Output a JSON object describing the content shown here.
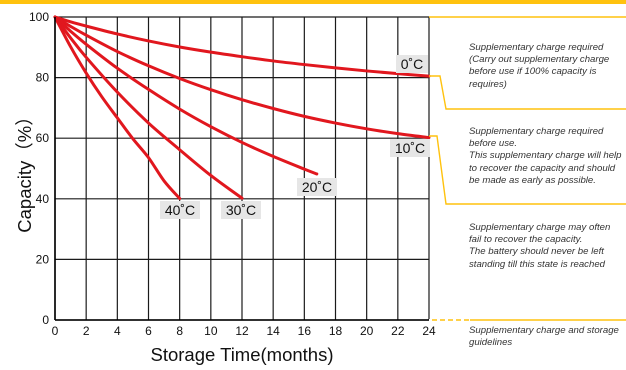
{
  "colors": {
    "accent": "#FFC20E",
    "curve": "#E1171E",
    "grid": "#1a1a1a",
    "label_bg": "#E6E6E6"
  },
  "chart_data": {
    "type": "line",
    "xlabel": "Storage Time(months)",
    "ylabel": "Capacity（%）",
    "xlim": [
      0,
      24
    ],
    "ylim": [
      0,
      100
    ],
    "x_ticks": [
      "0",
      "2",
      "4",
      "6",
      "8",
      "10",
      "12",
      "14",
      "16",
      "18",
      "20",
      "22",
      "24"
    ],
    "y_ticks": [
      "0",
      "20",
      "40",
      "60",
      "80",
      "100"
    ],
    "grid": true,
    "series": [
      {
        "name": "0˚C",
        "x": [
          0,
          1,
          2,
          4,
          6,
          8,
          10,
          12,
          14,
          16,
          18,
          20,
          22,
          24
        ],
        "y": [
          100,
          98.4,
          97,
          94.4,
          92.1,
          90.1,
          88.4,
          86.9,
          85.5,
          84.3,
          83.2,
          82.2,
          81.3,
          80.5
        ]
      },
      {
        "name": "10˚C",
        "x": [
          0,
          1,
          2,
          4,
          6,
          8,
          10,
          12,
          14,
          16,
          18,
          20,
          22,
          24
        ],
        "y": [
          100,
          96.9,
          94,
          88.6,
          83.9,
          79.7,
          76,
          72.7,
          69.8,
          67.2,
          65,
          63.1,
          61.5,
          60.2
        ]
      },
      {
        "name": "20˚C",
        "x": [
          0,
          1,
          2,
          4,
          6,
          8,
          10,
          12,
          14,
          16,
          16.8
        ],
        "y": [
          100,
          95.3,
          91,
          83.1,
          76.1,
          69.6,
          63.8,
          58.6,
          54,
          49.8,
          48.2
        ]
      },
      {
        "name": "30˚C",
        "x": [
          0,
          1,
          2,
          4,
          6,
          8,
          10,
          12
        ],
        "y": [
          100,
          93.1,
          86.7,
          75.2,
          65,
          56.2,
          47.7,
          40.2
        ]
      },
      {
        "name": "40˚C",
        "x": [
          0,
          1,
          2,
          3,
          4,
          5,
          6,
          7,
          8
        ],
        "y": [
          100,
          90.2,
          81.5,
          73.7,
          66.7,
          59.8,
          53.6,
          45.9,
          40.1
        ]
      }
    ],
    "annotations": [
      "Supplementary charge required\n(Carry out supplementary charge\nbefore use if 100% capacity is\nrequires)",
      "Supplementary charge required\nbefore use.\nThis supplementary charge will help\nto recover the capacity and should\nbe made  as early as possible.",
      "Supplementary charge may often\nfail to recover the capacity.\nThe battery should never be left\nstanding till this state is reached",
      "Supplementary charge and storage\nguidelines"
    ]
  }
}
